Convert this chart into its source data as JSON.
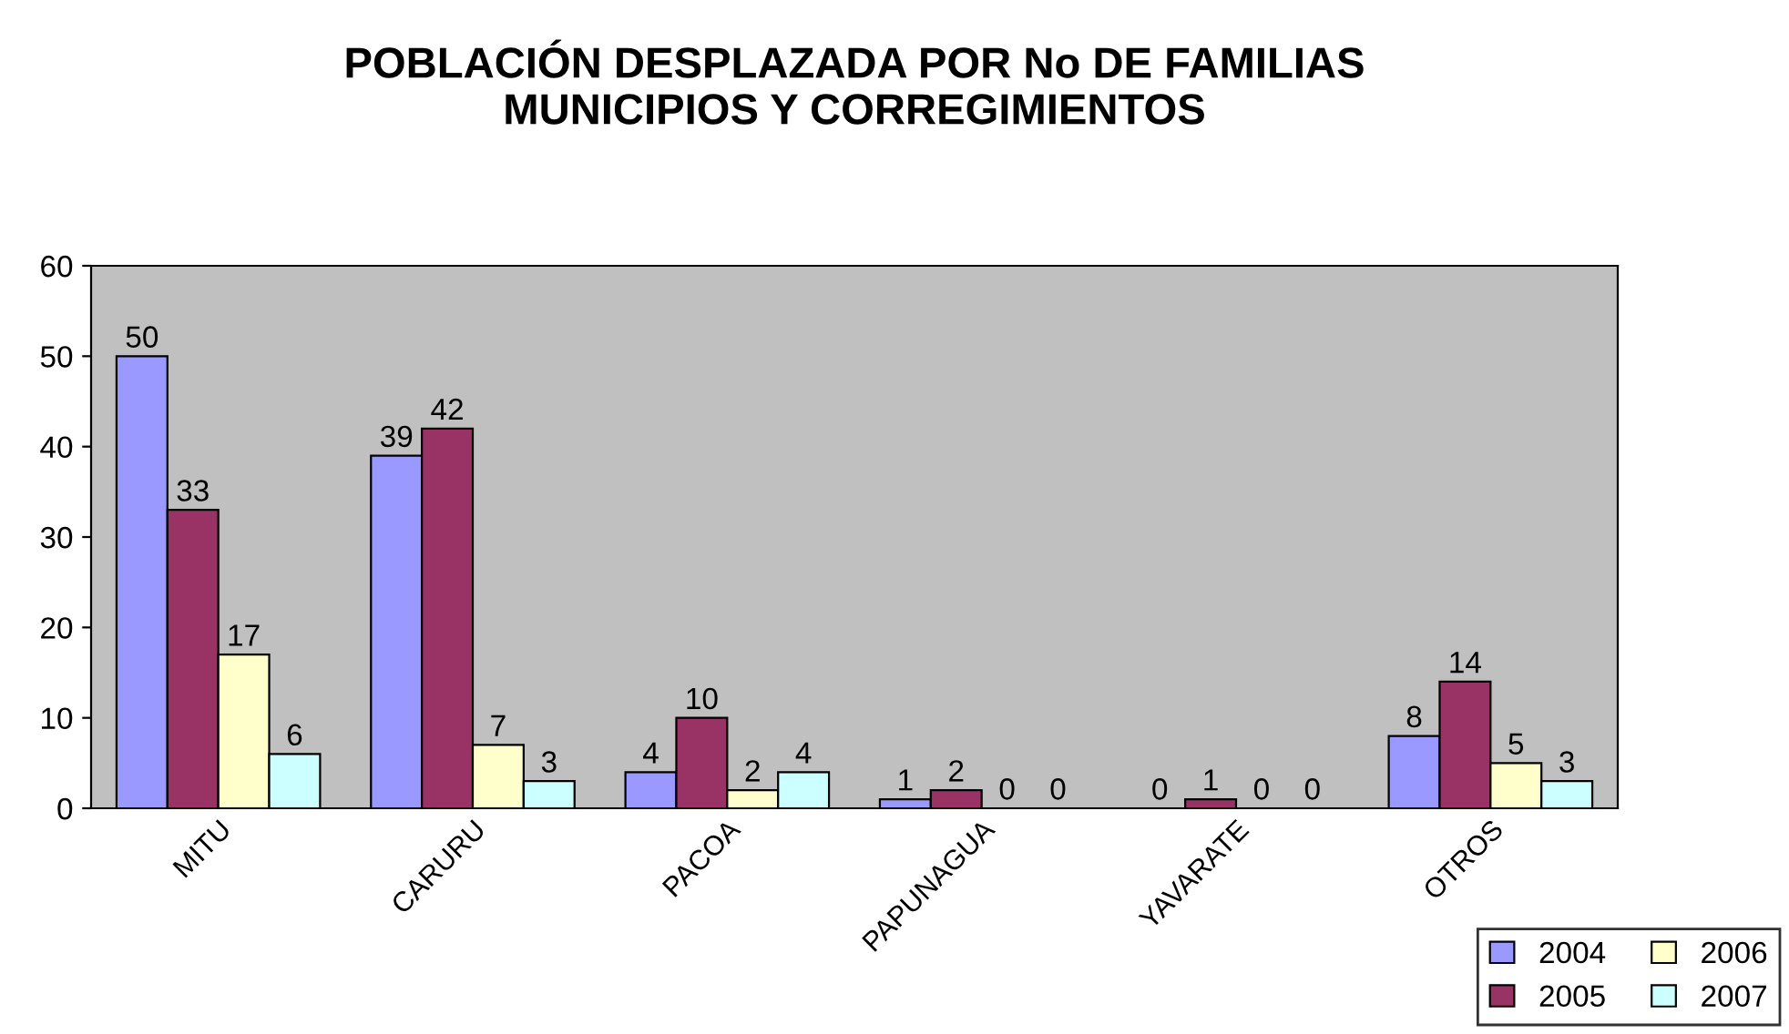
{
  "chart_data": {
    "type": "bar",
    "title": "POBLACIÓN DESPLAZADA POR No DE FAMILIAS\nMUNICIPIOS Y CORREGIMIENTOS",
    "categories": [
      "MITU",
      "CARURU",
      "PACOA",
      "PAPUNAGUA",
      "YAVARATE",
      "OTROS"
    ],
    "series": [
      {
        "name": "2004",
        "color": "#9999ff",
        "values": [
          50,
          39,
          4,
          1,
          0,
          8
        ]
      },
      {
        "name": "2005",
        "color": "#993366",
        "values": [
          33,
          42,
          10,
          2,
          1,
          14
        ]
      },
      {
        "name": "2006",
        "color": "#ffffcc",
        "values": [
          17,
          7,
          2,
          0,
          0,
          5
        ]
      },
      {
        "name": "2007",
        "color": "#ccffff",
        "values": [
          6,
          3,
          4,
          0,
          0,
          3
        ]
      }
    ],
    "ylim": [
      0,
      60
    ],
    "yticks": [
      0,
      10,
      20,
      30,
      40,
      50,
      60
    ],
    "grid": false,
    "legend": "bottom right",
    "data_labels": true
  }
}
